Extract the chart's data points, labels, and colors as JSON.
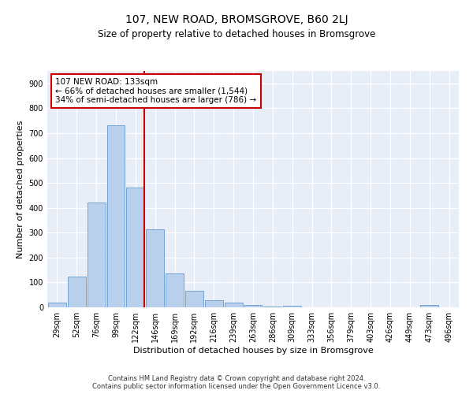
{
  "title": "107, NEW ROAD, BROMSGROVE, B60 2LJ",
  "subtitle": "Size of property relative to detached houses in Bromsgrove",
  "xlabel": "Distribution of detached houses by size in Bromsgrove",
  "ylabel": "Number of detached properties",
  "footer_line1": "Contains HM Land Registry data © Crown copyright and database right 2024.",
  "footer_line2": "Contains public sector information licensed under the Open Government Licence v3.0.",
  "bar_labels": [
    "29sqm",
    "52sqm",
    "76sqm",
    "99sqm",
    "122sqm",
    "146sqm",
    "169sqm",
    "192sqm",
    "216sqm",
    "239sqm",
    "263sqm",
    "286sqm",
    "309sqm",
    "333sqm",
    "356sqm",
    "379sqm",
    "403sqm",
    "426sqm",
    "449sqm",
    "473sqm",
    "496sqm"
  ],
  "bar_values": [
    20,
    122,
    420,
    730,
    480,
    313,
    135,
    65,
    27,
    20,
    8,
    3,
    7,
    0,
    0,
    0,
    0,
    0,
    0,
    10,
    0
  ],
  "bar_color": "#b8d0eb",
  "bar_edge_color": "#6699cc",
  "vline_color": "#cc0000",
  "annotation_text": "107 NEW ROAD: 133sqm\n← 66% of detached houses are smaller (1,544)\n34% of semi-detached houses are larger (786) →",
  "annotation_box_color": "#ffffff",
  "annotation_box_edge_color": "#cc0000",
  "ylim": [
    0,
    950
  ],
  "yticks": [
    0,
    100,
    200,
    300,
    400,
    500,
    600,
    700,
    800,
    900
  ],
  "background_color": "#e8eef8",
  "grid_color": "#ffffff",
  "title_fontsize": 10,
  "subtitle_fontsize": 8.5,
  "xlabel_fontsize": 8,
  "ylabel_fontsize": 8,
  "tick_fontsize": 7,
  "annotation_fontsize": 7.5,
  "footer_fontsize": 6
}
